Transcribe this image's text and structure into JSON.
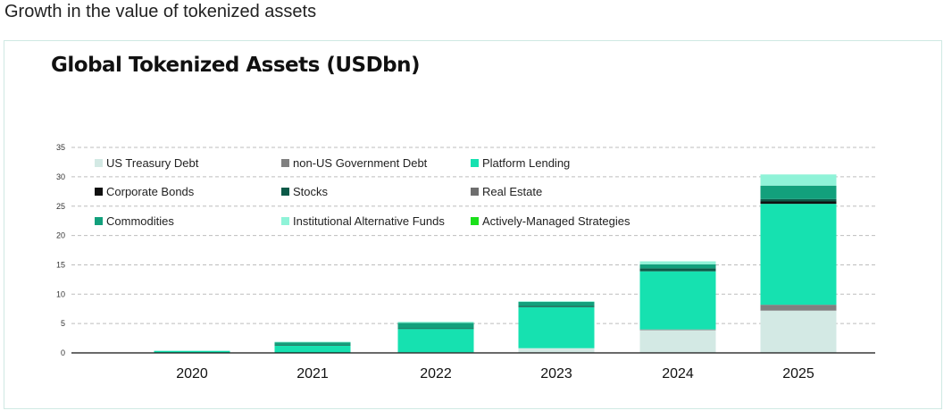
{
  "page": {
    "heading": "Growth in the value of tokenized assets"
  },
  "chart_data": {
    "type": "bar",
    "stacked": true,
    "title": "Global Tokenized Assets (USDbn)",
    "xlabel": "",
    "ylabel": "",
    "categories": [
      "2020",
      "2021",
      "2022",
      "2023",
      "2024",
      "2025"
    ],
    "ylim": [
      0,
      35
    ],
    "yticks": [
      0,
      5,
      10,
      15,
      20,
      25,
      30,
      35
    ],
    "grid": "horizontal-dashed",
    "legend_position": "top-left",
    "series": [
      {
        "name": "US Treasury Debt",
        "color": "#d3e9e4",
        "values": [
          0,
          0.05,
          0.1,
          0.8,
          3.9,
          7.2
        ]
      },
      {
        "name": "non-US Government Debt",
        "color": "#808080",
        "values": [
          0,
          0,
          0,
          0,
          0.1,
          1.0
        ]
      },
      {
        "name": "Platform Lending",
        "color": "#16e1b0",
        "values": [
          0.35,
          1.2,
          4.0,
          7.0,
          9.9,
          17.2
        ]
      },
      {
        "name": "Corporate Bonds",
        "color": "#101010",
        "values": [
          0,
          0,
          0,
          0,
          0,
          0.4
        ]
      },
      {
        "name": "Stocks",
        "color": "#0c5a48",
        "values": [
          0,
          0.1,
          0.1,
          0.2,
          0.5,
          0.4
        ]
      },
      {
        "name": "Real Estate",
        "color": "#6e6e6e",
        "values": [
          0,
          0,
          0,
          0,
          0,
          0
        ]
      },
      {
        "name": "Commodities",
        "color": "#12a07c",
        "values": [
          0,
          0.5,
          0.9,
          0.7,
          0.7,
          2.3
        ]
      },
      {
        "name": "Institutional Alternative Funds",
        "color": "#8ff3d8",
        "values": [
          0,
          0.05,
          0.2,
          0.1,
          0.5,
          1.9
        ]
      },
      {
        "name": "Actively-Managed Strategies",
        "color": "#1be01b",
        "values": [
          0,
          0,
          0,
          0,
          0,
          0
        ]
      }
    ]
  }
}
